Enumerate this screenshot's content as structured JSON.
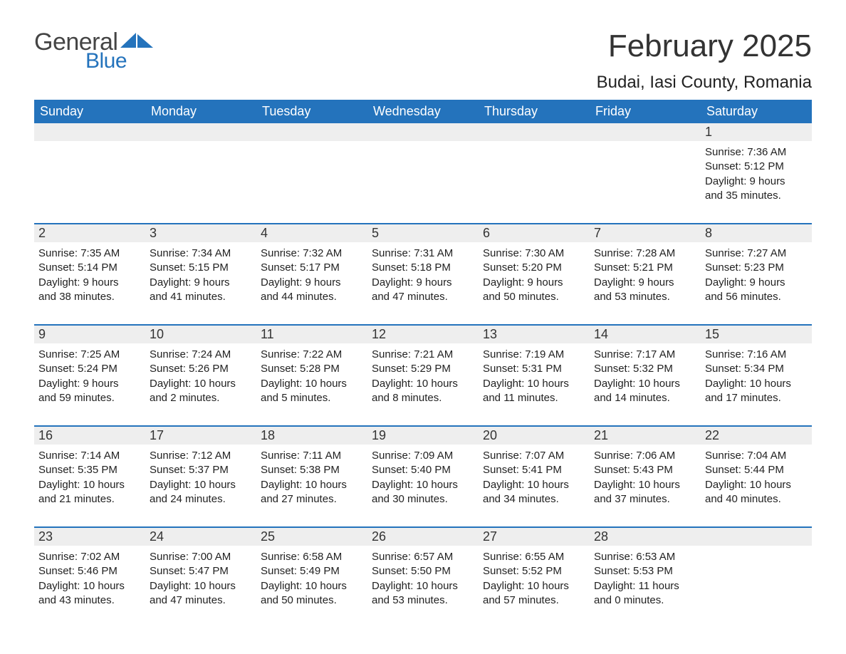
{
  "logo": {
    "text_left": "General",
    "text_right": "Blue",
    "accent_color": "#2473bc"
  },
  "title": {
    "month": "February 2025",
    "location": "Budai, Iasi County, Romania"
  },
  "colors": {
    "header_bg": "#2473bc",
    "header_text": "#ffffff",
    "daynum_bg": "#eeeeee",
    "week_divider": "#2473bc",
    "text": "#222222",
    "background": "#ffffff"
  },
  "typography": {
    "title_fontsize": 44,
    "location_fontsize": 24,
    "dow_fontsize": 18,
    "daynum_fontsize": 18,
    "body_fontsize": 15
  },
  "layout": {
    "columns": 7,
    "rows": 5
  },
  "day_of_week": [
    "Sunday",
    "Monday",
    "Tuesday",
    "Wednesday",
    "Thursday",
    "Friday",
    "Saturday"
  ],
  "weeks": [
    [
      null,
      null,
      null,
      null,
      null,
      null,
      {
        "n": "1",
        "sunrise": "Sunrise: 7:36 AM",
        "sunset": "Sunset: 5:12 PM",
        "d1": "Daylight: 9 hours",
        "d2": "and 35 minutes."
      }
    ],
    [
      {
        "n": "2",
        "sunrise": "Sunrise: 7:35 AM",
        "sunset": "Sunset: 5:14 PM",
        "d1": "Daylight: 9 hours",
        "d2": "and 38 minutes."
      },
      {
        "n": "3",
        "sunrise": "Sunrise: 7:34 AM",
        "sunset": "Sunset: 5:15 PM",
        "d1": "Daylight: 9 hours",
        "d2": "and 41 minutes."
      },
      {
        "n": "4",
        "sunrise": "Sunrise: 7:32 AM",
        "sunset": "Sunset: 5:17 PM",
        "d1": "Daylight: 9 hours",
        "d2": "and 44 minutes."
      },
      {
        "n": "5",
        "sunrise": "Sunrise: 7:31 AM",
        "sunset": "Sunset: 5:18 PM",
        "d1": "Daylight: 9 hours",
        "d2": "and 47 minutes."
      },
      {
        "n": "6",
        "sunrise": "Sunrise: 7:30 AM",
        "sunset": "Sunset: 5:20 PM",
        "d1": "Daylight: 9 hours",
        "d2": "and 50 minutes."
      },
      {
        "n": "7",
        "sunrise": "Sunrise: 7:28 AM",
        "sunset": "Sunset: 5:21 PM",
        "d1": "Daylight: 9 hours",
        "d2": "and 53 minutes."
      },
      {
        "n": "8",
        "sunrise": "Sunrise: 7:27 AM",
        "sunset": "Sunset: 5:23 PM",
        "d1": "Daylight: 9 hours",
        "d2": "and 56 minutes."
      }
    ],
    [
      {
        "n": "9",
        "sunrise": "Sunrise: 7:25 AM",
        "sunset": "Sunset: 5:24 PM",
        "d1": "Daylight: 9 hours",
        "d2": "and 59 minutes."
      },
      {
        "n": "10",
        "sunrise": "Sunrise: 7:24 AM",
        "sunset": "Sunset: 5:26 PM",
        "d1": "Daylight: 10 hours",
        "d2": "and 2 minutes."
      },
      {
        "n": "11",
        "sunrise": "Sunrise: 7:22 AM",
        "sunset": "Sunset: 5:28 PM",
        "d1": "Daylight: 10 hours",
        "d2": "and 5 minutes."
      },
      {
        "n": "12",
        "sunrise": "Sunrise: 7:21 AM",
        "sunset": "Sunset: 5:29 PM",
        "d1": "Daylight: 10 hours",
        "d2": "and 8 minutes."
      },
      {
        "n": "13",
        "sunrise": "Sunrise: 7:19 AM",
        "sunset": "Sunset: 5:31 PM",
        "d1": "Daylight: 10 hours",
        "d2": "and 11 minutes."
      },
      {
        "n": "14",
        "sunrise": "Sunrise: 7:17 AM",
        "sunset": "Sunset: 5:32 PM",
        "d1": "Daylight: 10 hours",
        "d2": "and 14 minutes."
      },
      {
        "n": "15",
        "sunrise": "Sunrise: 7:16 AM",
        "sunset": "Sunset: 5:34 PM",
        "d1": "Daylight: 10 hours",
        "d2": "and 17 minutes."
      }
    ],
    [
      {
        "n": "16",
        "sunrise": "Sunrise: 7:14 AM",
        "sunset": "Sunset: 5:35 PM",
        "d1": "Daylight: 10 hours",
        "d2": "and 21 minutes."
      },
      {
        "n": "17",
        "sunrise": "Sunrise: 7:12 AM",
        "sunset": "Sunset: 5:37 PM",
        "d1": "Daylight: 10 hours",
        "d2": "and 24 minutes."
      },
      {
        "n": "18",
        "sunrise": "Sunrise: 7:11 AM",
        "sunset": "Sunset: 5:38 PM",
        "d1": "Daylight: 10 hours",
        "d2": "and 27 minutes."
      },
      {
        "n": "19",
        "sunrise": "Sunrise: 7:09 AM",
        "sunset": "Sunset: 5:40 PM",
        "d1": "Daylight: 10 hours",
        "d2": "and 30 minutes."
      },
      {
        "n": "20",
        "sunrise": "Sunrise: 7:07 AM",
        "sunset": "Sunset: 5:41 PM",
        "d1": "Daylight: 10 hours",
        "d2": "and 34 minutes."
      },
      {
        "n": "21",
        "sunrise": "Sunrise: 7:06 AM",
        "sunset": "Sunset: 5:43 PM",
        "d1": "Daylight: 10 hours",
        "d2": "and 37 minutes."
      },
      {
        "n": "22",
        "sunrise": "Sunrise: 7:04 AM",
        "sunset": "Sunset: 5:44 PM",
        "d1": "Daylight: 10 hours",
        "d2": "and 40 minutes."
      }
    ],
    [
      {
        "n": "23",
        "sunrise": "Sunrise: 7:02 AM",
        "sunset": "Sunset: 5:46 PM",
        "d1": "Daylight: 10 hours",
        "d2": "and 43 minutes."
      },
      {
        "n": "24",
        "sunrise": "Sunrise: 7:00 AM",
        "sunset": "Sunset: 5:47 PM",
        "d1": "Daylight: 10 hours",
        "d2": "and 47 minutes."
      },
      {
        "n": "25",
        "sunrise": "Sunrise: 6:58 AM",
        "sunset": "Sunset: 5:49 PM",
        "d1": "Daylight: 10 hours",
        "d2": "and 50 minutes."
      },
      {
        "n": "26",
        "sunrise": "Sunrise: 6:57 AM",
        "sunset": "Sunset: 5:50 PM",
        "d1": "Daylight: 10 hours",
        "d2": "and 53 minutes."
      },
      {
        "n": "27",
        "sunrise": "Sunrise: 6:55 AM",
        "sunset": "Sunset: 5:52 PM",
        "d1": "Daylight: 10 hours",
        "d2": "and 57 minutes."
      },
      {
        "n": "28",
        "sunrise": "Sunrise: 6:53 AM",
        "sunset": "Sunset: 5:53 PM",
        "d1": "Daylight: 11 hours",
        "d2": "and 0 minutes."
      },
      null
    ]
  ]
}
